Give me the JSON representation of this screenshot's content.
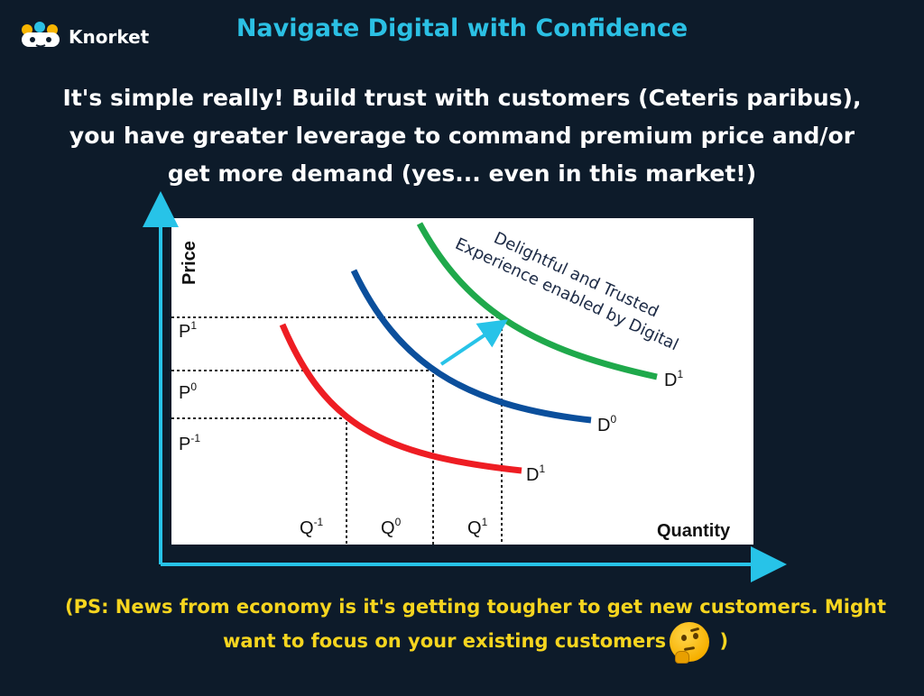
{
  "brand": {
    "name": "Knorket",
    "icon": "knorket-logo-icon"
  },
  "header": {
    "title": "Navigate Digital with Confidence"
  },
  "headline": {
    "line1": "It's simple really! Build trust with customers (Ceteris paribus),",
    "line2": "you have greater leverage to command premium price and/or",
    "line3": "get more demand  (yes... even in this market!)"
  },
  "diagram": {
    "y_axis_label": "Price",
    "x_axis_label": "Quantity",
    "price_levels": [
      "P",
      "P",
      "P"
    ],
    "price_sup": [
      "1",
      "0",
      "-1"
    ],
    "quantity_levels": [
      "Q",
      "Q",
      "Q"
    ],
    "quantity_sup": [
      "-1",
      "0",
      "1"
    ],
    "curves": [
      {
        "label": "D",
        "sup": "1",
        "color": "#ee1d23"
      },
      {
        "label": "D",
        "sup": "0",
        "color": "#0b4f9c"
      },
      {
        "label": "D",
        "sup": "1",
        "color": "#1fa94b"
      }
    ],
    "shift_arrow_color": "#27c3e8",
    "axis_color": "#27c3e8",
    "annotation_line1": "Delightful and Trusted",
    "annotation_line2": "Experience enabled by Digital"
  },
  "footer": {
    "line1": "(PS: News from economy is it's getting tougher to get new customers. Might",
    "line2_before": "want to focus on your existing customers",
    "line2_after": " )",
    "emoji": "thinking-face-icon"
  }
}
